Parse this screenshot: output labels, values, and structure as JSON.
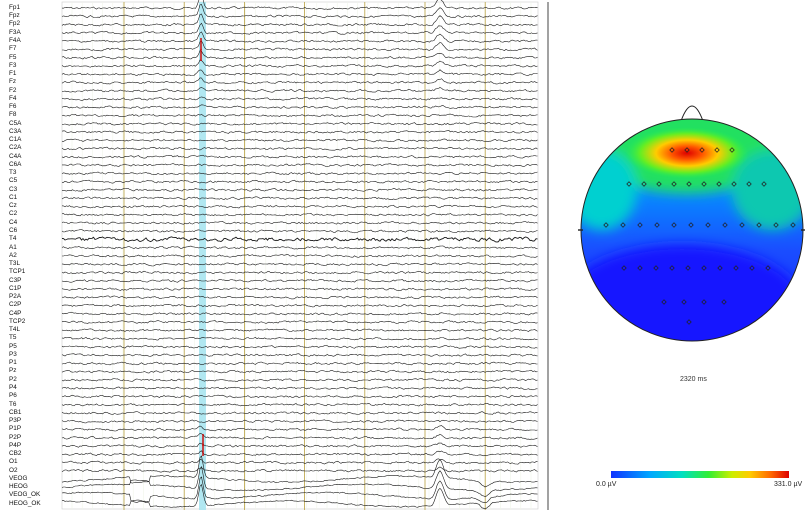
{
  "eeg": {
    "channels": [
      "Fp1",
      "Fpz",
      "Fp2",
      "F3A",
      "F4A",
      "F7",
      "F5",
      "F3",
      "F1",
      "Fz",
      "F2",
      "F4",
      "F6",
      "F8",
      "C5A",
      "C3A",
      "C1A",
      "C2A",
      "C4A",
      "C6A",
      "T3",
      "C5",
      "C3",
      "C1",
      "Cz",
      "C2",
      "C4",
      "C6",
      "T4",
      "A1",
      "A2",
      "T3L",
      "TCP1",
      "C3P",
      "C1P",
      "P2A",
      "C2P",
      "C4P",
      "TCP2",
      "T4L",
      "T5",
      "P5",
      "P3",
      "P1",
      "Pz",
      "P2",
      "P4",
      "P6",
      "T6",
      "CB1",
      "P3P",
      "P1P",
      "P2P",
      "P4P",
      "CB2",
      "O1",
      "O2",
      "VEOG",
      "HEOG",
      "VEOG_OK",
      "HEOG_OK"
    ],
    "noisy_channel": "T4"
  },
  "topomap": {
    "time_label": "2320 ms",
    "colorbar_min": "0.0 µV",
    "colorbar_max": "331.0 µV",
    "electrode_marker": "diamond-icon"
  },
  "colors": {
    "selected_time_band": "#a8e4f0",
    "marker_line": "#b8a040",
    "spike": "#cc0000"
  }
}
